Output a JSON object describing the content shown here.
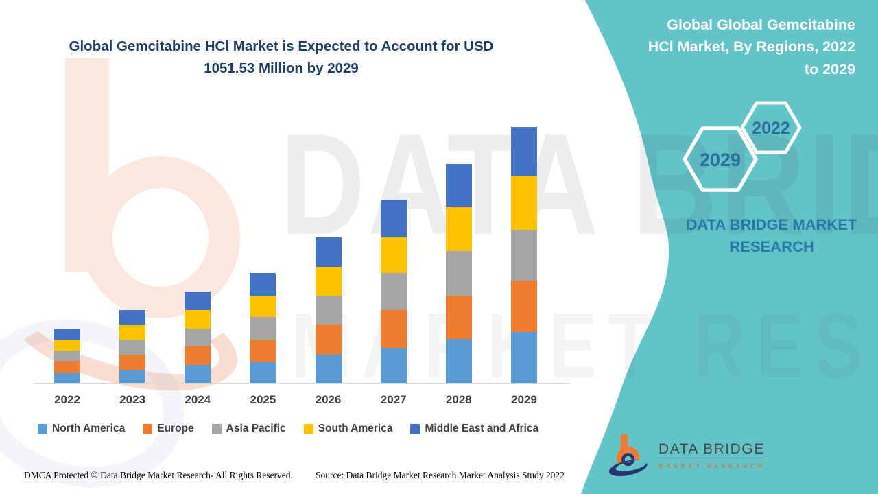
{
  "header": {
    "title_left_lines": [
      "Global Gemcitabine HCl Market is Expected to Account for USD",
      "1051.53 Million by 2029"
    ],
    "title_right_lines": [
      "Global Global Gemcitabine",
      "HCl Market, By Regions, 2022",
      "to 2029"
    ]
  },
  "badges": {
    "hex_large": "2029",
    "hex_small": "2022"
  },
  "brand": {
    "panel_text_lines": [
      "DATA BRIDGE MARKET",
      "RESEARCH"
    ],
    "logo_title": "DATA BRIDGE",
    "logo_subtitle": "MARKET RESEARCH"
  },
  "watermark": {
    "line1": "DATA BRIDGE",
    "line2": "MARKET RESEARCH"
  },
  "footer": {
    "left": "DMCA Protected © Data Bridge Market Research- All Rights Reserved.",
    "right": "Source: Data Bridge Market Research Market Analysis Study 2022"
  },
  "colors": {
    "teal_panel": "#62C4C9",
    "title_navy": "#1F3C67",
    "panel_brand_text": "#2779A8",
    "hexagon_text": "#2B6E9E",
    "axis_line": "#d9d9d9",
    "label_gray": "#3f3f3f"
  },
  "chart_data": {
    "type": "bar",
    "stacked": true,
    "title": "Global Gemcitabine HCl Market is Expected to Account for USD 1051.53 Million by 2029",
    "subtitle": "Global Global Gemcitabine HCl Market, By Regions, 2022 to 2029",
    "unit": "USD Million",
    "categories": [
      "2022",
      "2023",
      "2024",
      "2025",
      "2026",
      "2027",
      "2028",
      "2029"
    ],
    "series": [
      {
        "name": "North America",
        "color": "#5B9BD5",
        "values": [
          43,
          56,
          75,
          86,
          117,
          147,
          183,
          212
        ]
      },
      {
        "name": "Europe",
        "color": "#ED7D31",
        "values": [
          51,
          63,
          80,
          94,
          126,
          153,
          176,
          209
        ]
      },
      {
        "name": "Asia Pacific",
        "color": "#A5A5A5",
        "values": [
          42,
          61,
          70,
          94,
          117,
          154,
          185,
          209
        ]
      },
      {
        "name": "South America",
        "color": "#FFC000",
        "values": [
          42,
          61,
          77,
          86,
          119,
          145,
          181,
          222
        ]
      },
      {
        "name": "Middle East and Africa",
        "color": "#4472C4",
        "values": [
          44,
          61,
          74,
          92,
          121,
          154,
          175,
          199
        ]
      }
    ],
    "estimated_totals": [
      222,
      302,
      376,
      452,
      600,
      753,
      900,
      1051.53
    ],
    "total_2029": 1051.53,
    "ylim": [
      0,
      1100
    ],
    "grid": false,
    "y_axis_shown": false,
    "legend_position": "bottom"
  }
}
